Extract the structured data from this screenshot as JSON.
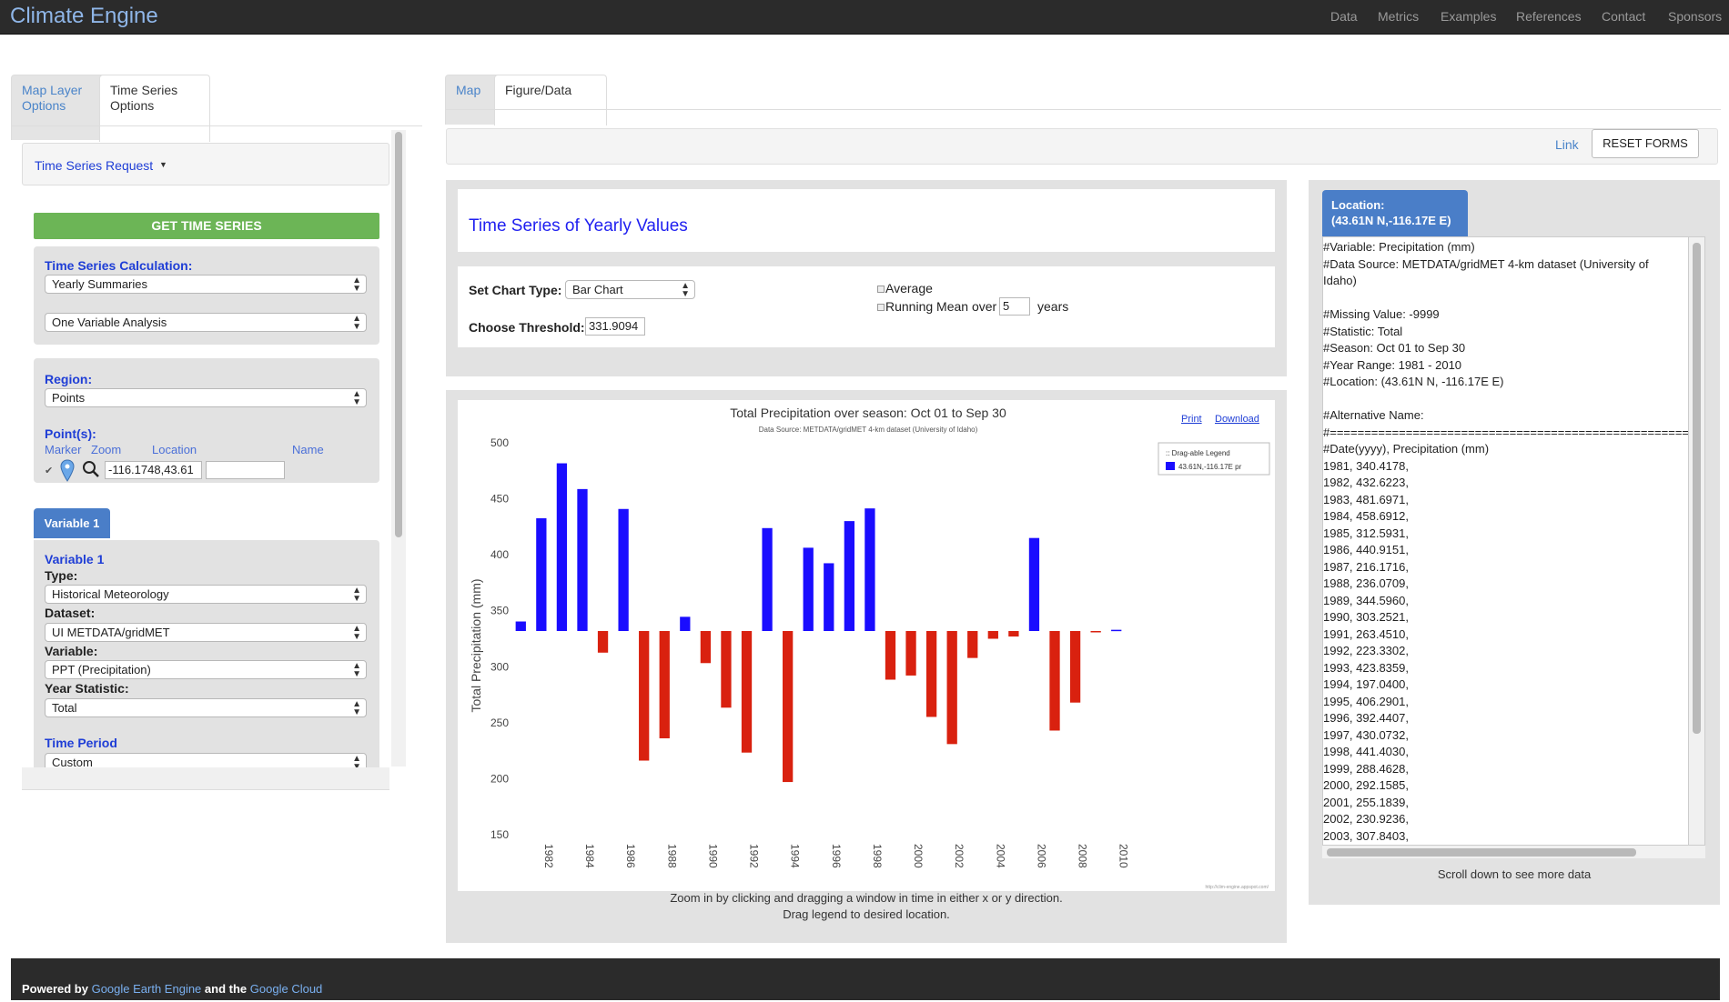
{
  "navbar": {
    "brand": "Climate Engine",
    "links": [
      "Data",
      "Metrics",
      "Examples",
      "References",
      "Contact",
      "Sponsors"
    ]
  },
  "left_tabs": {
    "map_layer": "Map Layer\nOptions",
    "time_series": "Time Series\nOptions"
  },
  "left": {
    "request_title": "Time Series Request",
    "get_button": "GET TIME SERIES",
    "calc_label": "Time Series Calculation:",
    "calc_select": "Yearly Summaries",
    "analysis_select": "One Variable Analysis",
    "region_label": "Region:",
    "region_select": "Points",
    "points_label": "Point(s):",
    "col_marker": "Marker",
    "col_zoom": "Zoom",
    "col_location": "Location",
    "col_name": "Name",
    "point_location_value": "-116.1748,43.61",
    "point_name_value": "",
    "variable_tab": "Variable 1",
    "variable_heading": "Variable 1",
    "type_label": "Type:",
    "type_select": "Historical Meteorology",
    "dataset_label": "Dataset:",
    "dataset_select": "UI METDATA/gridMET",
    "variable_label": "Variable:",
    "variable_select": "PPT (Precipitation)",
    "year_stat_label": "Year Statistic:",
    "year_stat_select": "Total",
    "time_period_label": "Time Period",
    "time_period_select": "Custom"
  },
  "center_tabs": {
    "map": "Map",
    "figure": "Figure/Data"
  },
  "toolbar": {
    "link": "Link",
    "reset": "RESET FORMS"
  },
  "figure": {
    "title": "Time Series of Yearly Values",
    "chart_type_label": "Set Chart Type:",
    "chart_type_select": "Bar Chart",
    "threshold_label": "Choose Threshold:",
    "threshold_value": "331.9094",
    "average_label": "Average",
    "running_mean_label": "Running Mean over",
    "running_mean_value": "5",
    "years_label": "years",
    "print_link": "Print",
    "download_link": "Download",
    "legend_title": ":: Drag-able Legend",
    "legend_entry": "43.61N,-116.17E pr",
    "watermark": "http://clim-engine.appspot.com/",
    "zoom_note": "Zoom in by clicking and dragging a window in time in either x or y direction.",
    "drag_note": "Drag legend to desired location."
  },
  "chart_data": {
    "type": "bar",
    "title": "Total Precipitation over season: Oct 01 to Sep 30",
    "subtitle": "Data Source: METDATA/gridMET 4-km dataset (University of Idaho)",
    "xlabel": "",
    "ylabel": "Total Precipitation (mm)",
    "ylim": [
      150,
      500
    ],
    "yticks": [
      150,
      200,
      250,
      300,
      350,
      400,
      450,
      500
    ],
    "xticks": [
      "1982",
      "1984",
      "1986",
      "1988",
      "1990",
      "1992",
      "1994",
      "1996",
      "1998",
      "2000",
      "2002",
      "2004",
      "2006",
      "2008",
      "2010"
    ],
    "baseline": 331.9094,
    "categories": [
      "1981",
      "1982",
      "1983",
      "1984",
      "1985",
      "1986",
      "1987",
      "1988",
      "1989",
      "1990",
      "1991",
      "1992",
      "1993",
      "1994",
      "1995",
      "1996",
      "1997",
      "1998",
      "1999",
      "2000",
      "2001",
      "2002",
      "2003",
      "2004",
      "2005",
      "2006",
      "2007",
      "2008",
      "2009",
      "2010"
    ],
    "values": [
      340.4178,
      432.6223,
      481.6971,
      458.6912,
      312.5931,
      440.9151,
      216.1716,
      236.0709,
      344.596,
      303.2521,
      263.451,
      223.3302,
      423.8359,
      197.04,
      406.2901,
      392.4407,
      430.0732,
      441.403,
      288.4628,
      292.1585,
      255.1839,
      230.9236,
      307.8403,
      325,
      327,
      415,
      243,
      268,
      331,
      333
    ],
    "above_color": "#1a0dff",
    "below_color": "#d9210f",
    "legend_position": "top-right"
  },
  "data_panel": {
    "location_label": "Location:",
    "location_value": "(43.61N N,-116.17E E)",
    "lines": [
      "#Variable: Precipitation (mm)",
      "#Data Source: METDATA/gridMET 4-km dataset (University of",
      "Idaho)",
      "",
      "#Missing Value: -9999",
      "#Statistic: Total",
      "#Season: Oct 01 to Sep 30",
      "#Year Range: 1981 - 2010",
      "#Location: (43.61N N, -116.17E E)",
      "",
      "#Alternative Name:",
      "#=========================================================",
      "#Date(yyyy), Precipitation (mm)",
      "1981, 340.4178,",
      "1982, 432.6223,",
      "1983, 481.6971,",
      "1984, 458.6912,",
      "1985, 312.5931,",
      "1986, 440.9151,",
      "1987, 216.1716,",
      "1988, 236.0709,",
      "1989, 344.5960,",
      "1990, 303.2521,",
      "1991, 263.4510,",
      "1992, 223.3302,",
      "1993, 423.8359,",
      "1994, 197.0400,",
      "1995, 406.2901,",
      "1996, 392.4407,",
      "1997, 430.0732,",
      "1998, 441.4030,",
      "1999, 288.4628,",
      "2000, 292.1585,",
      "2001, 255.1839,",
      "2002, 230.9236,",
      "2003, 307.8403,"
    ],
    "scroll_note": "Scroll down to see more data"
  },
  "footer": {
    "powered_by": "Powered by",
    "gee": "Google Earth Engine",
    "and_the": "and the",
    "cloud": "Google Cloud"
  }
}
